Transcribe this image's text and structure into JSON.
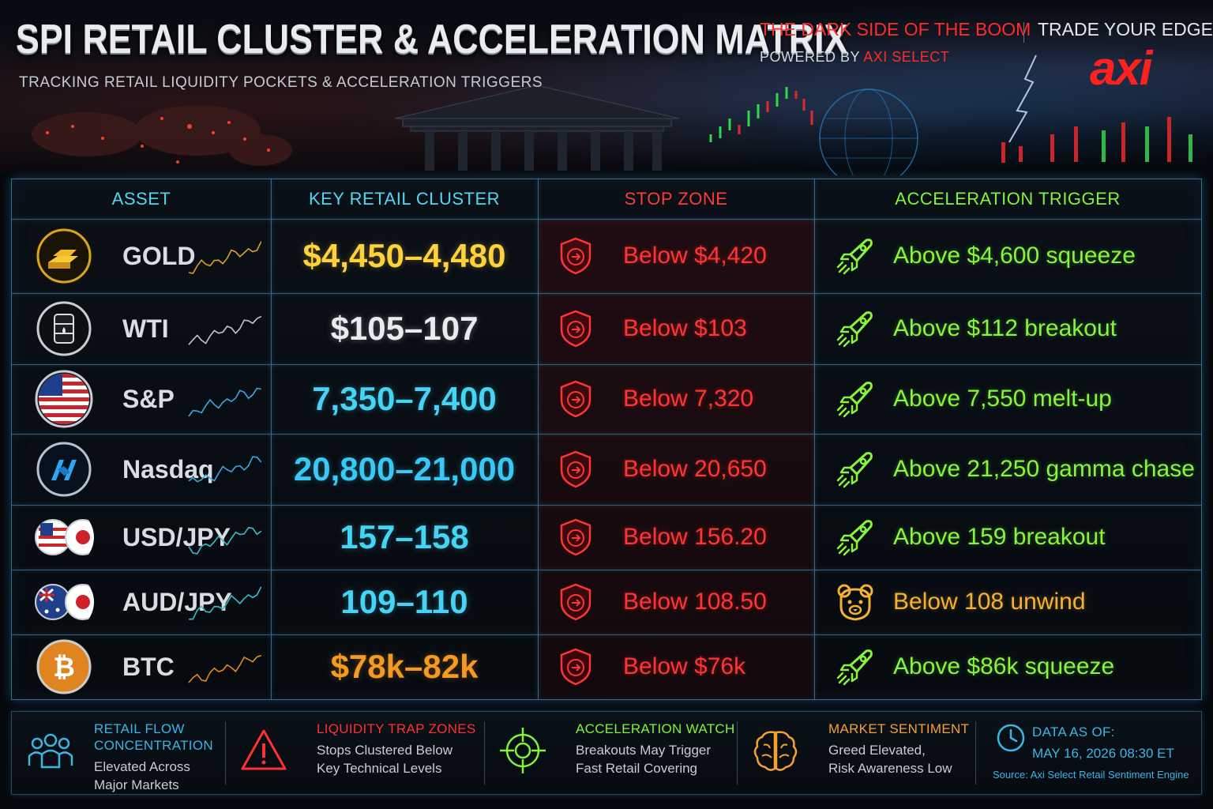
{
  "header": {
    "title": "SPI RETAIL CLUSTER & ACCELERATION MATRIX",
    "subtitle": "TRACKING RETAIL LIQUIDITY POCKETS & ACCELERATION TRIGGERS",
    "tagline": "THE DARK SIDE OF THE BOOM",
    "powered_prefix": "POWERED BY",
    "powered_brand": "AXI SELECT",
    "cta": "TRADE YOUR EDGE",
    "logo": "axi"
  },
  "table": {
    "columns": [
      "ASSET",
      "KEY RETAIL CLUSTER",
      "STOP ZONE",
      "ACCELERATION TRIGGER"
    ],
    "rows": [
      {
        "asset": "GOLD",
        "icon": "gold-bars-icon",
        "cluster": "$4,450–4,480",
        "cluster_color": "#ffd23a",
        "stop": "Below $4,420",
        "trigger": "Above $4,600 squeeze",
        "trigger_icon": "rocket-icon",
        "trigger_color": "#86f53c",
        "spark_color": "#e0a020"
      },
      {
        "asset": "WTI",
        "icon": "oil-barrel-icon",
        "cluster": "$105–107",
        "cluster_color": "#e8ecef",
        "stop": "Below $103",
        "trigger": "Above $112 breakout",
        "trigger_icon": "rocket-icon",
        "trigger_color": "#86f53c",
        "spark_color": "#bfc5cc"
      },
      {
        "asset": "S&P",
        "icon": "us-flag-icon",
        "cluster": "7,350–7,400",
        "cluster_color": "#45d4f5",
        "stop": "Below 7,320",
        "trigger": "Above 7,550 melt-up",
        "trigger_icon": "rocket-icon",
        "trigger_color": "#86f53c",
        "spark_color": "#3aa8e0"
      },
      {
        "asset": "Nasdaq",
        "icon": "nasdaq-logo-icon",
        "cluster": "20,800–21,000",
        "cluster_color": "#38c8f5",
        "stop": "Below 20,650",
        "trigger": "Above 21,250 gamma chase",
        "trigger_icon": "rocket-icon",
        "trigger_color": "#86f53c",
        "spark_color": "#3aa8e0"
      },
      {
        "asset": "USD/JPY",
        "icon": "usd-jpy-flags-icon",
        "cluster": "157–158",
        "cluster_color": "#45d4f5",
        "stop": "Below 156.20",
        "trigger": "Above 159 breakout",
        "trigger_icon": "rocket-icon",
        "trigger_color": "#86f53c",
        "spark_color": "#35c0c8"
      },
      {
        "asset": "AUD/JPY",
        "icon": "aud-jpy-flags-icon",
        "cluster": "109–110",
        "cluster_color": "#45d4f5",
        "stop": "Below 108.50",
        "trigger": "Below 108 unwind",
        "trigger_icon": "bear-icon",
        "trigger_color": "#f5b230",
        "spark_color": "#35c0c8"
      },
      {
        "asset": "BTC",
        "icon": "bitcoin-icon",
        "cluster": "$78k–82k",
        "cluster_color": "#f59a20",
        "stop": "Below $76k",
        "trigger": "Above $86k squeeze",
        "trigger_icon": "rocket-icon",
        "trigger_color": "#86f53c",
        "spark_color": "#e08a20"
      }
    ]
  },
  "footer": [
    {
      "icon": "people-icon",
      "title": "RETAIL FLOW CONCENTRATION",
      "title_lines": [
        "RETAIL FLOW",
        "CONCENTRATION"
      ],
      "body": [
        "Elevated Across",
        "Major Markets"
      ],
      "color": "#35b8e8"
    },
    {
      "icon": "warning-icon",
      "title": "LIQUIDITY TRAP ZONES",
      "title_lines": [
        "LIQUIDITY TRAP ZONES"
      ],
      "body": [
        "Stops Clustered Below",
        "Key Technical Levels"
      ],
      "color": "#ff3030"
    },
    {
      "icon": "crosshair-icon",
      "title": "ACCELERATION WATCH",
      "title_lines": [
        "ACCELERATION WATCH"
      ],
      "body": [
        "Breakouts May Trigger",
        "Fast Retail Covering"
      ],
      "color": "#7cf53a"
    },
    {
      "icon": "brain-icon",
      "title": "MARKET SENTIMENT",
      "title_lines": [
        "MARKET SENTIMENT"
      ],
      "body": [
        "Greed Elevated,",
        "Risk Awareness Low"
      ],
      "color": "#f5a030"
    },
    {
      "icon": "clock-icon",
      "title": "DATA AS OF:",
      "title_lines": [
        "DATA AS OF:"
      ],
      "body": [
        "MAY 16, 2026 08:30 ET"
      ],
      "source": "Source: Axi Select Retail Sentiment Engine",
      "color": "#35b8e8"
    }
  ]
}
